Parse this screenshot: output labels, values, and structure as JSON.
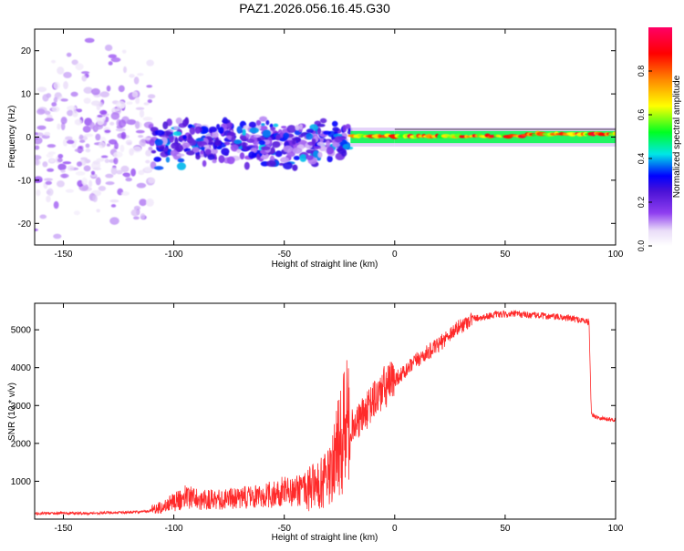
{
  "title": "PAZ1.2026.056.16.45.G30",
  "chart_data": [
    {
      "type": "heatmap",
      "xlabel": "Height of straight line (km)",
      "ylabel": "Frequency (Hz)",
      "xlim": [
        -163,
        100
      ],
      "ylim": [
        -25,
        25
      ],
      "xticks": [
        -150,
        -100,
        -50,
        0,
        50,
        100
      ],
      "yticks": [
        -20,
        -10,
        0,
        10,
        20
      ],
      "colorbar": {
        "label": "Normalized spectral amplitude",
        "range": [
          0,
          1
        ],
        "ticks": [
          "0.0",
          "0.2",
          "0.4",
          "0.6",
          "0.8"
        ],
        "colors": [
          "#ffffff",
          "#e9dcf8",
          "#8f3ff0",
          "#4b12d6",
          "#0000ff",
          "#00e6e6",
          "#00ff22",
          "#ffff00",
          "#ff8800",
          "#ff0000",
          "#ff0066"
        ]
      },
      "description_bands": [
        {
          "x_from": -163,
          "x_to": -110,
          "freq_spread": 25,
          "level": 0.12
        },
        {
          "x_from": -110,
          "x_to": -20,
          "freq_spread": 7,
          "level": 0.25
        },
        {
          "x_from": -20,
          "x_to": 0,
          "freq_spread": 1.5,
          "level": 0.7
        },
        {
          "x_from": 0,
          "x_to": 100,
          "freq_spread": 1.2,
          "level": 0.8
        }
      ]
    },
    {
      "type": "line",
      "xlabel": "Height of straight line (km)",
      "ylabel": "SNR (10 * v/v)",
      "xlim": [
        -163,
        100
      ],
      "ylim": [
        0,
        5700
      ],
      "xticks": [
        -150,
        -100,
        -50,
        0,
        50,
        100
      ],
      "yticks": [
        1000,
        2000,
        3000,
        4000,
        5000
      ],
      "color": "#ff2a2a",
      "series": [
        {
          "name": "SNR",
          "x": [
            -163,
            -150,
            -140,
            -130,
            -120,
            -112,
            -105,
            -100,
            -97,
            -95,
            -92,
            -88,
            -82,
            -75,
            -68,
            -60,
            -55,
            -50,
            -45,
            -40,
            -35,
            -30,
            -27,
            -25,
            -22,
            -20,
            -18,
            -15,
            -12,
            -10,
            -7,
            -5,
            -2,
            0,
            5,
            10,
            15,
            20,
            25,
            30,
            35,
            40,
            45,
            50,
            55,
            60,
            65,
            70,
            75,
            80,
            85,
            88,
            89,
            90,
            95,
            100
          ],
          "y": [
            150,
            160,
            150,
            170,
            180,
            200,
            320,
            450,
            500,
            650,
            550,
            520,
            520,
            540,
            560,
            620,
            650,
            750,
            750,
            800,
            900,
            1050,
            1500,
            2000,
            2400,
            2500,
            2450,
            2700,
            2900,
            3100,
            3300,
            3450,
            3550,
            3700,
            3900,
            4200,
            4400,
            4600,
            4900,
            5100,
            5300,
            5330,
            5400,
            5400,
            5420,
            5390,
            5380,
            5350,
            5330,
            5300,
            5250,
            5200,
            2800,
            2720,
            2650,
            2620
          ]
        }
      ]
    }
  ]
}
